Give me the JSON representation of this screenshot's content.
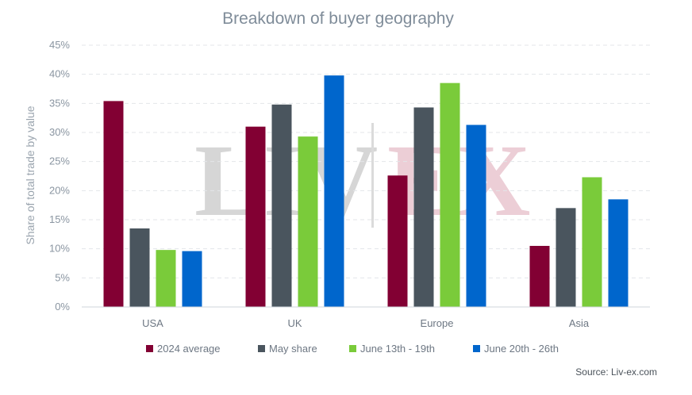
{
  "source": "Source: Liv-ex.com",
  "watermark": {
    "left": "LIV",
    "right": "EX"
  },
  "chart_data": {
    "type": "bar",
    "title": "Breakdown of buyer geography",
    "ylabel": "Share of total trade by value",
    "xlabel": "",
    "ylim": [
      0,
      45
    ],
    "yticks": [
      0,
      5,
      10,
      15,
      20,
      25,
      30,
      35,
      40,
      45
    ],
    "ytick_labels": [
      "0%",
      "5%",
      "10%",
      "15%",
      "20%",
      "25%",
      "30%",
      "35%",
      "40%",
      "45%"
    ],
    "grid": true,
    "legend_position": "bottom",
    "categories": [
      "USA",
      "UK",
      "Europe",
      "Asia"
    ],
    "series": [
      {
        "name": "2024 average",
        "color": "#820033",
        "values": [
          35.4,
          31.0,
          22.6,
          10.5
        ]
      },
      {
        "name": "May share",
        "color": "#4a555e",
        "values": [
          13.5,
          34.8,
          34.3,
          17.0
        ]
      },
      {
        "name": "June 13th - 19th",
        "color": "#7acb3a",
        "values": [
          9.8,
          29.3,
          38.5,
          22.3
        ]
      },
      {
        "name": "June 20th - 26th",
        "color": "#0066cc",
        "values": [
          9.6,
          39.8,
          31.3,
          18.5
        ]
      }
    ]
  }
}
